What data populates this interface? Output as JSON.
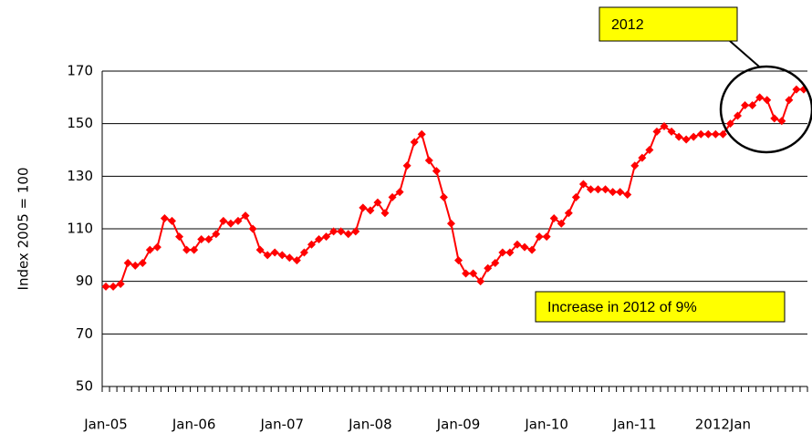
{
  "chart_data": {
    "type": "line",
    "y_label": "Index 2005 = 100",
    "annotations": [
      "2012",
      "Increase in 2012 of 9%"
    ],
    "categories": [
      "Jan-05",
      null,
      null,
      null,
      null,
      null,
      null,
      null,
      null,
      null,
      null,
      null,
      "Jan-06",
      null,
      null,
      null,
      null,
      null,
      null,
      null,
      null,
      null,
      null,
      null,
      "Jan-07",
      null,
      null,
      null,
      null,
      null,
      null,
      null,
      null,
      null,
      null,
      null,
      "Jan-08",
      null,
      null,
      null,
      null,
      null,
      null,
      null,
      null,
      null,
      null,
      null,
      "Jan-09",
      null,
      null,
      null,
      null,
      null,
      null,
      null,
      null,
      null,
      null,
      null,
      "Jan-10",
      null,
      null,
      null,
      null,
      null,
      null,
      null,
      null,
      null,
      null,
      null,
      "Jan-11",
      null,
      null,
      null,
      null,
      null,
      null,
      null,
      null,
      null,
      null,
      null,
      "2012Jan",
      null,
      null,
      null,
      null,
      null,
      null,
      null,
      null,
      null,
      null,
      null
    ],
    "series": [
      {
        "name": "Index",
        "color": "#ff0000",
        "values": [
          88,
          88,
          89,
          97,
          96,
          97,
          102,
          103,
          114,
          113,
          107,
          102,
          102,
          106,
          106,
          108,
          113,
          112,
          113,
          115,
          110,
          102,
          100,
          101,
          100,
          99,
          98,
          101,
          104,
          106,
          107,
          109,
          109,
          108,
          109,
          118,
          117,
          120,
          116,
          122,
          124,
          134,
          143,
          146,
          136,
          132,
          122,
          112,
          98,
          93,
          93,
          90,
          95,
          97,
          101,
          101,
          104,
          103,
          102,
          107,
          107,
          114,
          112,
          116,
          122,
          127,
          125,
          125,
          125,
          124,
          124,
          123,
          134,
          137,
          140,
          147,
          149,
          147,
          145,
          144,
          145,
          146,
          146,
          146,
          146,
          150,
          153,
          157,
          157,
          160,
          159,
          152,
          151,
          159,
          163,
          163
        ]
      }
    ],
    "ylim": [
      50,
      170
    ],
    "yticks": [
      50,
      70,
      90,
      110,
      130,
      150,
      170
    ],
    "grid": true
  }
}
